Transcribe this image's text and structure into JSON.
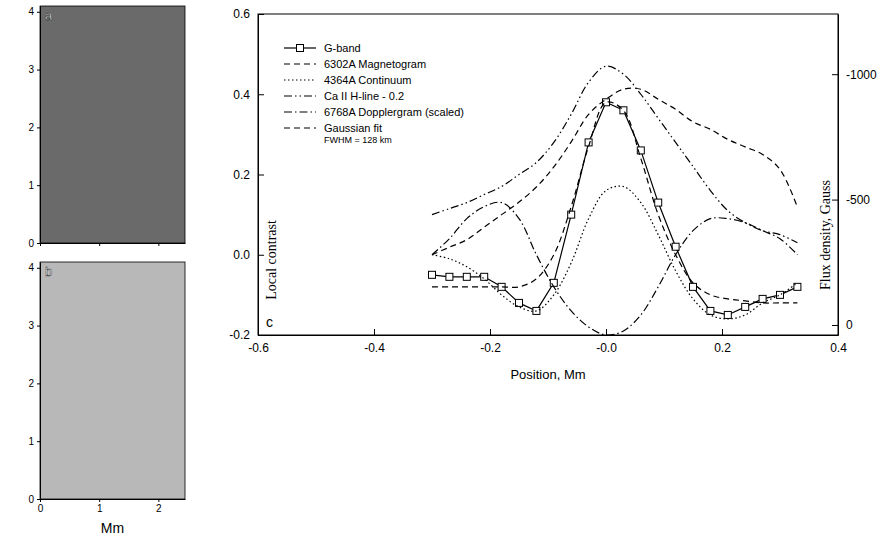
{
  "chart_data": [
    {
      "type": "image",
      "panel": "a",
      "xlim": [
        0,
        2.45
      ],
      "ylim": [
        0,
        4.1
      ],
      "xticks": [
        0,
        1,
        2
      ],
      "yticks": [
        0,
        1,
        2,
        3,
        4
      ],
      "tick_labels": "y",
      "color": "#6a6a6a"
    },
    {
      "type": "image",
      "panel": "b",
      "x_label": "Mm",
      "xlim": [
        0,
        2.45
      ],
      "ylim": [
        0,
        4.1
      ],
      "xticks": [
        0,
        1,
        2
      ],
      "yticks": [
        0,
        1,
        2,
        3,
        4
      ],
      "tick_labels": true,
      "color": "#b8b8b8"
    },
    {
      "type": "line",
      "panel": "c",
      "x_label": "Position, Mm",
      "y_label": "Local contrast",
      "y2_label": "Flux density, Gauss",
      "annotation": "FWHM = 128 km",
      "legend": "upper left",
      "xlim": [
        -0.6,
        0.4
      ],
      "xticks": [
        -0.6,
        -0.4,
        -0.2,
        {
          "value": 0,
          "label": "-0.0"
        },
        0.2,
        0.4
      ],
      "ylim": [
        -0.2,
        0.6
      ],
      "yticks": [
        -0.2,
        {
          "value": 0,
          "label": "0.0"
        },
        0.2,
        0.4,
        0.6
      ],
      "y2lim": [
        40,
        -1240
      ],
      "y2ticks": [
        -1000,
        -500,
        0
      ],
      "x": [
        -0.3,
        -0.27,
        -0.24,
        -0.21,
        -0.18,
        -0.15,
        -0.12,
        -0.09,
        -0.06,
        -0.03,
        0,
        0.03,
        0.06,
        0.09,
        0.12,
        0.15,
        0.18,
        0.21,
        0.24,
        0.27,
        0.3,
        0.33
      ],
      "series": [
        {
          "name": "G-band",
          "color": "#000000",
          "line_style": "solid",
          "marker": "square",
          "values": [
            -0.05,
            -0.055,
            -0.055,
            -0.055,
            -0.08,
            -0.12,
            -0.14,
            -0.07,
            0.1,
            0.28,
            0.38,
            0.36,
            0.26,
            0.13,
            0.02,
            -0.08,
            -0.14,
            -0.15,
            -0.13,
            -0.11,
            -0.1,
            -0.08
          ]
        },
        {
          "name": "6302A Magnetogram",
          "color": "#000000",
          "line_style": "dashed",
          "axis": "y2",
          "values": [
            -280,
            -310,
            -340,
            -390,
            -440,
            -490,
            -550,
            -630,
            -730,
            -840,
            -900,
            -940,
            -940,
            -900,
            -860,
            -810,
            -780,
            -740,
            -710,
            -680,
            -620,
            -470
          ]
        },
        {
          "name": "4364A Continuum",
          "color": "#000000",
          "line_style": "dotted",
          "values": [
            0.0,
            -0.01,
            -0.03,
            -0.06,
            -0.1,
            -0.13,
            -0.14,
            -0.1,
            -0.02,
            0.09,
            0.16,
            0.17,
            0.13,
            0.05,
            -0.04,
            -0.11,
            -0.15,
            -0.16,
            -0.15,
            -0.12,
            -0.1,
            -0.07
          ]
        },
        {
          "name": "Ca II H-line - 0.2",
          "color": "#000000",
          "line_style": "dashdotdot",
          "values": [
            0.1,
            0.115,
            0.13,
            0.15,
            0.17,
            0.2,
            0.23,
            0.28,
            0.35,
            0.43,
            0.47,
            0.45,
            0.4,
            0.34,
            0.28,
            0.22,
            0.16,
            0.11,
            0.08,
            0.06,
            0.05,
            0.03
          ]
        },
        {
          "name": "6768A Dopplergram (scaled)",
          "color": "#000000",
          "line_style": "dashdot",
          "values": [
            0.0,
            0.04,
            0.09,
            0.12,
            0.13,
            0.09,
            0.0,
            -0.08,
            -0.14,
            -0.18,
            -0.2,
            -0.19,
            -0.15,
            -0.08,
            0.0,
            0.06,
            0.09,
            0.09,
            0.08,
            0.06,
            0.04,
            0.0
          ]
        },
        {
          "name": "Gaussian fit",
          "color": "#000000",
          "line_style": "dashed",
          "values": [
            -0.08,
            -0.08,
            -0.08,
            -0.08,
            -0.08,
            -0.08,
            -0.06,
            0.0,
            0.12,
            0.27,
            0.38,
            0.36,
            0.24,
            0.1,
            0.0,
            -0.07,
            -0.1,
            -0.11,
            -0.115,
            -0.12,
            -0.12,
            -0.12
          ]
        }
      ]
    }
  ]
}
